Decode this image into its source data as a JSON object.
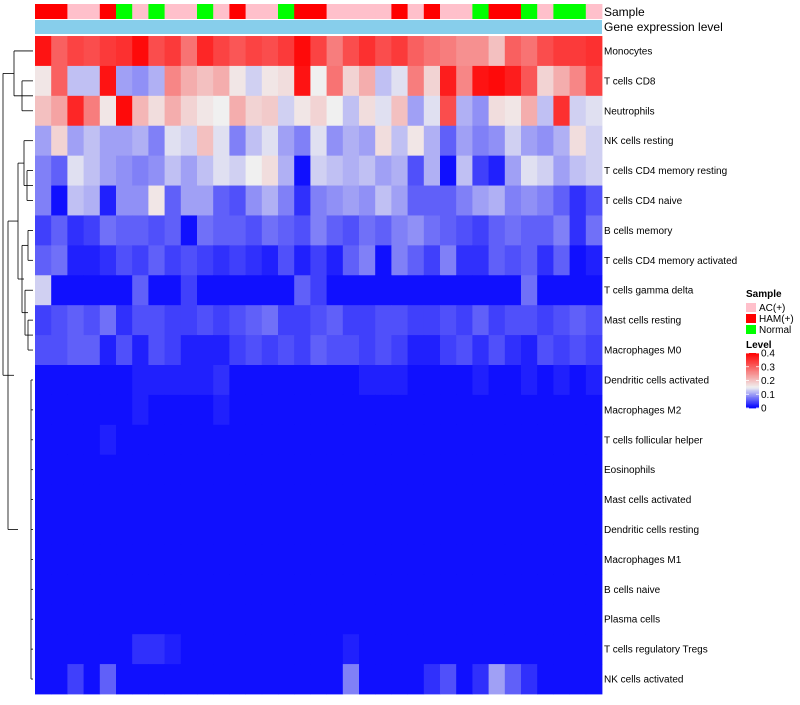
{
  "chart_data": {
    "type": "heatmap",
    "title": "",
    "annotation_tracks": [
      {
        "name": "Sample"
      },
      {
        "name": "Gene expression level"
      }
    ],
    "sample_groups": [
      "AC(+)",
      "HAM(+)",
      "Normal"
    ],
    "sample_annotation": [
      1,
      1,
      0,
      0,
      1,
      2,
      0,
      2,
      0,
      0,
      2,
      0,
      1,
      0,
      0,
      2,
      1,
      1,
      0,
      0,
      0,
      0,
      1,
      0,
      1,
      0,
      0,
      2,
      1,
      1,
      2,
      0,
      2,
      2,
      0
    ],
    "expression_level_color": "#87ceeb",
    "rows": [
      "Monocytes",
      "T cells CD8",
      "Neutrophils",
      "NK cells resting",
      "T cells CD4 memory resting",
      "T cells CD4 naive",
      "B cells memory",
      "T cells CD4 memory activated",
      "T cells gamma delta",
      "Mast cells resting",
      "Macrophages M0",
      "Dendritic cells activated",
      "Macrophages M2",
      "T cells follicular helper",
      "Eosinophils",
      "Mast cells activated",
      "Dendritic cells resting",
      "Macrophages M1",
      "B cells naive",
      "Plasma cells",
      "T cells regulatory  Tregs",
      "NK cells activated"
    ],
    "values": [
      [
        0.38,
        0.3,
        0.33,
        0.32,
        0.34,
        0.35,
        0.39,
        0.32,
        0.34,
        0.28,
        0.36,
        0.33,
        0.31,
        0.33,
        0.32,
        0.34,
        0.39,
        0.33,
        0.27,
        0.32,
        0.35,
        0.32,
        0.34,
        0.3,
        0.28,
        0.27,
        0.25,
        0.25,
        0.2,
        0.3,
        0.28,
        0.32,
        0.34,
        0.34,
        0.35
      ],
      [
        0.16,
        0.3,
        0.12,
        0.12,
        0.38,
        0.1,
        0.09,
        0.11,
        0.26,
        0.22,
        0.2,
        0.22,
        0.16,
        0.13,
        0.16,
        0.17,
        0.38,
        0.15,
        0.28,
        0.18,
        0.22,
        0.12,
        0.14,
        0.27,
        0.18,
        0.37,
        0.26,
        0.38,
        0.39,
        0.37,
        0.31,
        0.18,
        0.22,
        0.26,
        0.33
      ],
      [
        0.2,
        0.23,
        0.36,
        0.27,
        0.16,
        0.39,
        0.21,
        0.17,
        0.22,
        0.18,
        0.16,
        0.15,
        0.22,
        0.18,
        0.19,
        0.13,
        0.16,
        0.18,
        0.15,
        0.12,
        0.17,
        0.14,
        0.2,
        0.1,
        0.14,
        0.32,
        0.11,
        0.09,
        0.17,
        0.16,
        0.22,
        0.12,
        0.35,
        0.13,
        0.14
      ],
      [
        0.1,
        0.18,
        0.1,
        0.12,
        0.1,
        0.1,
        0.11,
        0.08,
        0.14,
        0.13,
        0.2,
        0.14,
        0.08,
        0.12,
        0.14,
        0.1,
        0.08,
        0.14,
        0.09,
        0.11,
        0.1,
        0.17,
        0.12,
        0.16,
        0.11,
        0.06,
        0.1,
        0.08,
        0.09,
        0.13,
        0.1,
        0.09,
        0.11,
        0.17,
        0.13
      ],
      [
        0.08,
        0.06,
        0.14,
        0.12,
        0.1,
        0.09,
        0.08,
        0.09,
        0.12,
        0.1,
        0.12,
        0.14,
        0.13,
        0.15,
        0.17,
        0.11,
        0.01,
        0.13,
        0.12,
        0.11,
        0.12,
        0.1,
        0.11,
        0.05,
        0.11,
        0.01,
        0.12,
        0.04,
        0.02,
        0.1,
        0.14,
        0.13,
        0.1,
        0.12,
        0.13
      ],
      [
        0.08,
        0.01,
        0.12,
        0.11,
        0.02,
        0.09,
        0.09,
        0.16,
        0.06,
        0.1,
        0.1,
        0.06,
        0.05,
        0.09,
        0.11,
        0.08,
        0.03,
        0.08,
        0.09,
        0.1,
        0.09,
        0.12,
        0.1,
        0.06,
        0.06,
        0.06,
        0.08,
        0.1,
        0.11,
        0.08,
        0.09,
        0.08,
        0.06,
        0.03,
        0.05
      ],
      [
        0.04,
        0.06,
        0.03,
        0.04,
        0.07,
        0.06,
        0.06,
        0.05,
        0.06,
        0.01,
        0.07,
        0.06,
        0.06,
        0.05,
        0.07,
        0.06,
        0.05,
        0.08,
        0.06,
        0.05,
        0.07,
        0.06,
        0.08,
        0.09,
        0.07,
        0.06,
        0.05,
        0.04,
        0.06,
        0.07,
        0.06,
        0.06,
        0.08,
        0.03,
        0.07
      ],
      [
        0.06,
        0.07,
        0.02,
        0.02,
        0.03,
        0.05,
        0.04,
        0.06,
        0.04,
        0.05,
        0.04,
        0.03,
        0.04,
        0.03,
        0.02,
        0.05,
        0.02,
        0.04,
        0.02,
        0.06,
        0.08,
        0.01,
        0.08,
        0.06,
        0.04,
        0.08,
        0.03,
        0.03,
        0.06,
        0.05,
        0.06,
        0.03,
        0.06,
        0.01,
        0.02
      ],
      [
        0.13,
        0.01,
        0.01,
        0.01,
        0.01,
        0.01,
        0.06,
        0.01,
        0.01,
        0.04,
        0.01,
        0.01,
        0.01,
        0.01,
        0.01,
        0.01,
        0.06,
        0.04,
        0.01,
        0.01,
        0.01,
        0.01,
        0.01,
        0.01,
        0.01,
        0.01,
        0.01,
        0.01,
        0.01,
        0.01,
        0.07,
        0.01,
        0.01,
        0.01,
        0.01
      ],
      [
        0.04,
        0.05,
        0.06,
        0.05,
        0.07,
        0.03,
        0.05,
        0.05,
        0.04,
        0.04,
        0.05,
        0.04,
        0.05,
        0.06,
        0.07,
        0.04,
        0.04,
        0.05,
        0.06,
        0.04,
        0.04,
        0.05,
        0.05,
        0.04,
        0.04,
        0.05,
        0.04,
        0.06,
        0.04,
        0.05,
        0.05,
        0.04,
        0.05,
        0.06,
        0.05
      ],
      [
        0.05,
        0.05,
        0.06,
        0.06,
        0.02,
        0.05,
        0.02,
        0.05,
        0.04,
        0.02,
        0.02,
        0.02,
        0.04,
        0.05,
        0.04,
        0.05,
        0.04,
        0.06,
        0.05,
        0.05,
        0.04,
        0.05,
        0.04,
        0.02,
        0.02,
        0.04,
        0.05,
        0.03,
        0.05,
        0.03,
        0.02,
        0.05,
        0.04,
        0.05,
        0.04
      ],
      [
        0.01,
        0.01,
        0.01,
        0.01,
        0.01,
        0.01,
        0.02,
        0.02,
        0.02,
        0.02,
        0.02,
        0.03,
        0.01,
        0.01,
        0.01,
        0.01,
        0.01,
        0.01,
        0.01,
        0.01,
        0.02,
        0.02,
        0.02,
        0.01,
        0.01,
        0.01,
        0.01,
        0.02,
        0.01,
        0.01,
        0.02,
        0.01,
        0.02,
        0.01,
        0.02
      ],
      [
        0.01,
        0.01,
        0.01,
        0.01,
        0.01,
        0.01,
        0.02,
        0.01,
        0.01,
        0.01,
        0.01,
        0.02,
        0.01,
        0.01,
        0.01,
        0.01,
        0.01,
        0.01,
        0.01,
        0.01,
        0.01,
        0.01,
        0.01,
        0.01,
        0.01,
        0.01,
        0.01,
        0.01,
        0.01,
        0.01,
        0.01,
        0.01,
        0.01,
        0.01,
        0.01
      ],
      [
        0.01,
        0.01,
        0.01,
        0.01,
        0.02,
        0.01,
        0.01,
        0.01,
        0.01,
        0.01,
        0.01,
        0.01,
        0.01,
        0.01,
        0.01,
        0.01,
        0.01,
        0.01,
        0.01,
        0.01,
        0.01,
        0.01,
        0.01,
        0.01,
        0.01,
        0.01,
        0.01,
        0.01,
        0.01,
        0.01,
        0.01,
        0.01,
        0.01,
        0.01,
        0.01
      ],
      [
        0.01,
        0.01,
        0.01,
        0.01,
        0.01,
        0.01,
        0.01,
        0.01,
        0.01,
        0.01,
        0.01,
        0.01,
        0.01,
        0.01,
        0.01,
        0.01,
        0.01,
        0.01,
        0.01,
        0.01,
        0.01,
        0.01,
        0.01,
        0.01,
        0.01,
        0.01,
        0.01,
        0.01,
        0.01,
        0.01,
        0.01,
        0.01,
        0.01,
        0.01,
        0.01
      ],
      [
        0.01,
        0.01,
        0.01,
        0.01,
        0.01,
        0.01,
        0.01,
        0.01,
        0.01,
        0.01,
        0.01,
        0.01,
        0.01,
        0.01,
        0.01,
        0.01,
        0.01,
        0.01,
        0.01,
        0.01,
        0.01,
        0.01,
        0.01,
        0.01,
        0.01,
        0.01,
        0.01,
        0.01,
        0.01,
        0.01,
        0.01,
        0.01,
        0.01,
        0.01,
        0.01
      ],
      [
        0.01,
        0.01,
        0.01,
        0.01,
        0.01,
        0.01,
        0.01,
        0.01,
        0.01,
        0.01,
        0.01,
        0.01,
        0.01,
        0.01,
        0.01,
        0.01,
        0.01,
        0.01,
        0.01,
        0.01,
        0.01,
        0.01,
        0.01,
        0.01,
        0.01,
        0.01,
        0.01,
        0.01,
        0.01,
        0.01,
        0.01,
        0.01,
        0.01,
        0.01,
        0.01
      ],
      [
        0.01,
        0.01,
        0.01,
        0.01,
        0.01,
        0.01,
        0.01,
        0.01,
        0.01,
        0.01,
        0.01,
        0.01,
        0.01,
        0.01,
        0.01,
        0.01,
        0.01,
        0.01,
        0.01,
        0.01,
        0.01,
        0.01,
        0.01,
        0.01,
        0.01,
        0.01,
        0.01,
        0.01,
        0.01,
        0.01,
        0.01,
        0.01,
        0.01,
        0.01,
        0.01
      ],
      [
        0.01,
        0.01,
        0.01,
        0.01,
        0.01,
        0.01,
        0.01,
        0.01,
        0.01,
        0.01,
        0.01,
        0.01,
        0.01,
        0.01,
        0.01,
        0.01,
        0.01,
        0.01,
        0.01,
        0.01,
        0.01,
        0.01,
        0.01,
        0.01,
        0.01,
        0.01,
        0.01,
        0.01,
        0.01,
        0.01,
        0.01,
        0.01,
        0.01,
        0.01,
        0.01
      ],
      [
        0.01,
        0.01,
        0.01,
        0.01,
        0.01,
        0.01,
        0.01,
        0.01,
        0.01,
        0.01,
        0.01,
        0.01,
        0.01,
        0.01,
        0.01,
        0.01,
        0.01,
        0.01,
        0.01,
        0.01,
        0.01,
        0.01,
        0.01,
        0.01,
        0.01,
        0.01,
        0.01,
        0.01,
        0.01,
        0.01,
        0.01,
        0.01,
        0.01,
        0.01,
        0.01
      ],
      [
        0.01,
        0.01,
        0.01,
        0.01,
        0.01,
        0.01,
        0.03,
        0.03,
        0.02,
        0.01,
        0.01,
        0.01,
        0.01,
        0.01,
        0.01,
        0.01,
        0.01,
        0.01,
        0.01,
        0.02,
        0.01,
        0.01,
        0.01,
        0.01,
        0.01,
        0.01,
        0.01,
        0.01,
        0.01,
        0.01,
        0.01,
        0.01,
        0.01,
        0.01,
        0.01
      ],
      [
        0.01,
        0.01,
        0.04,
        0.01,
        0.06,
        0.01,
        0.01,
        0.01,
        0.01,
        0.01,
        0.01,
        0.01,
        0.01,
        0.01,
        0.01,
        0.01,
        0.01,
        0.01,
        0.01,
        0.08,
        0.01,
        0.01,
        0.01,
        0.01,
        0.03,
        0.05,
        0.01,
        0.03,
        0.1,
        0.06,
        0.03,
        0.01,
        0.01,
        0.01,
        0.01
      ]
    ],
    "color_scale": {
      "min": 0,
      "max": 0.4,
      "low": "#0000ff",
      "mid_value": 0.15,
      "mid": "#f0f0f0",
      "high": "#ff0000"
    },
    "group_colors": {
      "AC(+)": "#ffc0cb",
      "HAM(+)": "#ff0000",
      "Normal": "#00ff00"
    },
    "legend": {
      "sample_title": "Sample",
      "level_title": "Level",
      "level_ticks": [
        0.4,
        0.3,
        0.2,
        0.1,
        0
      ],
      "position": "right"
    }
  }
}
